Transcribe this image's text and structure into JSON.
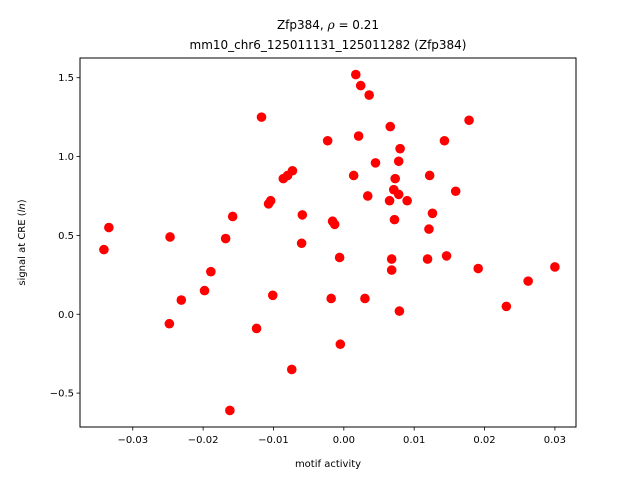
{
  "chart_data": {
    "type": "scatter",
    "title_line1_prefix": "Zfp384, ",
    "title_line1_rho": "ρ",
    "title_line1_suffix": " = 0.21",
    "title_line2": "mm10_chr6_125011131_125011282 (Zfp384)",
    "xlabel": "motif activity",
    "ylabel_prefix": "signal at CRE (",
    "ylabel_italic": "ln",
    "ylabel_suffix": ")",
    "xlim": [
      -0.0375,
      0.033
    ],
    "ylim": [
      -0.715,
      1.625
    ],
    "xticks": [
      -0.03,
      -0.02,
      -0.01,
      0.0,
      0.01,
      0.02,
      0.03
    ],
    "xtick_labels": [
      "−0.03",
      "−0.02",
      "−0.01",
      "0.00",
      "0.01",
      "0.02",
      "0.03"
    ],
    "yticks": [
      -0.5,
      0.0,
      0.5,
      1.0,
      1.5
    ],
    "ytick_labels": [
      "−0.5",
      "0.0",
      "0.5",
      "1.0",
      "1.5"
    ],
    "marker_color": "#ff0000",
    "points": [
      {
        "x": -0.0341,
        "y": 0.41
      },
      {
        "x": -0.0334,
        "y": 0.55
      },
      {
        "x": -0.0247,
        "y": 0.49
      },
      {
        "x": -0.0248,
        "y": -0.06
      },
      {
        "x": -0.0231,
        "y": 0.09
      },
      {
        "x": -0.0198,
        "y": 0.15
      },
      {
        "x": -0.0189,
        "y": 0.27
      },
      {
        "x": -0.0168,
        "y": 0.48
      },
      {
        "x": -0.0158,
        "y": 0.62
      },
      {
        "x": -0.0162,
        "y": -0.61
      },
      {
        "x": -0.0124,
        "y": -0.09
      },
      {
        "x": -0.0117,
        "y": 1.25
      },
      {
        "x": -0.0107,
        "y": 0.7
      },
      {
        "x": -0.0104,
        "y": 0.72
      },
      {
        "x": -0.0101,
        "y": 0.12
      },
      {
        "x": -0.0086,
        "y": 0.86
      },
      {
        "x": -0.008,
        "y": 0.88
      },
      {
        "x": -0.0073,
        "y": 0.91
      },
      {
        "x": -0.0074,
        "y": -0.35
      },
      {
        "x": -0.0059,
        "y": 0.63
      },
      {
        "x": -0.006,
        "y": 0.45
      },
      {
        "x": -0.0023,
        "y": 1.1
      },
      {
        "x": -0.0016,
        "y": 0.59
      },
      {
        "x": -0.0013,
        "y": 0.57
      },
      {
        "x": -0.0018,
        "y": 0.1
      },
      {
        "x": -0.0006,
        "y": 0.36
      },
      {
        "x": -0.0005,
        "y": -0.19
      },
      {
        "x": 0.0014,
        "y": 0.88
      },
      {
        "x": 0.0017,
        "y": 1.52
      },
      {
        "x": 0.0024,
        "y": 1.45
      },
      {
        "x": 0.0021,
        "y": 1.13
      },
      {
        "x": 0.0036,
        "y": 1.39
      },
      {
        "x": 0.003,
        "y": 0.1
      },
      {
        "x": 0.0034,
        "y": 0.75
      },
      {
        "x": 0.0045,
        "y": 0.96
      },
      {
        "x": 0.0066,
        "y": 1.19
      },
      {
        "x": 0.0065,
        "y": 0.72
      },
      {
        "x": 0.0073,
        "y": 0.86
      },
      {
        "x": 0.0071,
        "y": 0.79
      },
      {
        "x": 0.0078,
        "y": 0.76
      },
      {
        "x": 0.0078,
        "y": 0.97
      },
      {
        "x": 0.008,
        "y": 1.05
      },
      {
        "x": 0.009,
        "y": 0.72
      },
      {
        "x": 0.0072,
        "y": 0.6
      },
      {
        "x": 0.0068,
        "y": 0.35
      },
      {
        "x": 0.0068,
        "y": 0.28
      },
      {
        "x": 0.0079,
        "y": 0.02
      },
      {
        "x": 0.0119,
        "y": 0.35
      },
      {
        "x": 0.0122,
        "y": 0.88
      },
      {
        "x": 0.0121,
        "y": 0.54
      },
      {
        "x": 0.0126,
        "y": 0.64
      },
      {
        "x": 0.0143,
        "y": 1.1
      },
      {
        "x": 0.0146,
        "y": 0.37
      },
      {
        "x": 0.0159,
        "y": 0.78
      },
      {
        "x": 0.0178,
        "y": 1.23
      },
      {
        "x": 0.0191,
        "y": 0.29
      },
      {
        "x": 0.0231,
        "y": 0.05
      },
      {
        "x": 0.0262,
        "y": 0.21
      },
      {
        "x": 0.03,
        "y": 0.3
      }
    ]
  }
}
